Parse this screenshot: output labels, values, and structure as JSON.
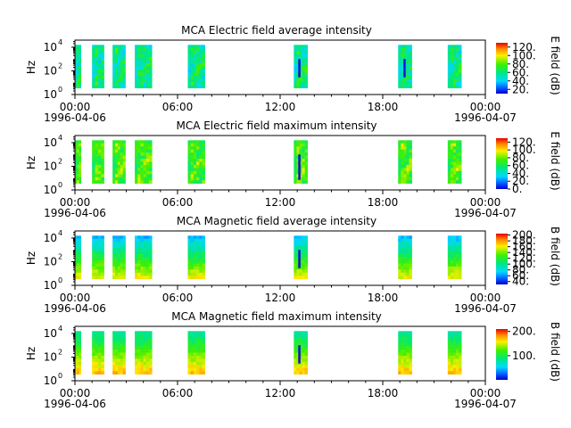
{
  "chart_data": [
    {
      "type": "heatmap",
      "title": "MCA  Electric field average intensity",
      "ylabel": "Hz",
      "colorbar_label": "E field (dB)",
      "colorbar_ticks": [
        "20.",
        "40.",
        "60.",
        "80.",
        "100.",
        "120."
      ],
      "colorbar_range": [
        10,
        130
      ],
      "y_scale": "log",
      "y_ticks": [
        {
          "base": "10",
          "exp": "0"
        },
        {
          "base": "10",
          "exp": "2"
        },
        {
          "base": "10",
          "exp": "4"
        }
      ],
      "x_ticks": [
        "00:00",
        "06:00",
        "12:00",
        "18:00",
        "00:00"
      ],
      "x_dates": [
        "1996-04-06",
        "1996-04-07"
      ],
      "bands_hours": [
        [
          0.0,
          0.35
        ],
        [
          1.0,
          1.7
        ],
        [
          2.2,
          2.95
        ],
        [
          3.5,
          4.5
        ],
        [
          6.6,
          7.6
        ],
        [
          12.8,
          13.6
        ],
        [
          18.9,
          19.7
        ],
        [
          21.8,
          22.6
        ]
      ],
      "gaps_hours": [
        [
          12.85,
          13.05
        ],
        [
          19.0,
          19.15
        ]
      ],
      "base_level": 60
    },
    {
      "type": "heatmap",
      "title": "MCA  Electric field maximum intensity",
      "ylabel": "Hz",
      "colorbar_label": "E field (dB)",
      "colorbar_ticks": [
        "0.",
        "20.",
        "40.",
        "60.",
        "80.",
        "100.",
        "120."
      ],
      "colorbar_range": [
        0,
        130
      ],
      "y_scale": "log",
      "y_ticks": [
        {
          "base": "10",
          "exp": "0"
        },
        {
          "base": "10",
          "exp": "2"
        },
        {
          "base": "10",
          "exp": "4"
        }
      ],
      "x_ticks": [
        "00:00",
        "06:00",
        "12:00",
        "18:00",
        "00:00"
      ],
      "x_dates": [
        "1996-04-06",
        "1996-04-07"
      ],
      "bands_hours": [
        [
          0.0,
          0.35
        ],
        [
          1.0,
          1.7
        ],
        [
          2.2,
          2.95
        ],
        [
          3.5,
          4.5
        ],
        [
          6.6,
          7.6
        ],
        [
          12.8,
          13.6
        ],
        [
          18.9,
          19.7
        ],
        [
          21.8,
          22.6
        ]
      ],
      "gaps_hours": [
        [
          12.85,
          13.05
        ]
      ],
      "base_level": 75
    },
    {
      "type": "heatmap",
      "title": "MCA  Magnetic field average intensity",
      "ylabel": "Hz",
      "colorbar_label": "B field (dB)",
      "colorbar_ticks": [
        "40.",
        "60.",
        "80.",
        "100.",
        "120.",
        "140.",
        "160.",
        "180.",
        "200."
      ],
      "colorbar_range": [
        30,
        205
      ],
      "y_scale": "log",
      "y_ticks": [
        {
          "base": "10",
          "exp": "0"
        },
        {
          "base": "10",
          "exp": "2"
        },
        {
          "base": "10",
          "exp": "4"
        }
      ],
      "x_ticks": [
        "00:00",
        "06:00",
        "12:00",
        "18:00",
        "00:00"
      ],
      "x_dates": [
        "1996-04-06",
        "1996-04-07"
      ],
      "bands_hours": [
        [
          0.0,
          0.35
        ],
        [
          1.0,
          1.7
        ],
        [
          2.2,
          2.95
        ],
        [
          3.5,
          4.5
        ],
        [
          6.6,
          7.6
        ],
        [
          12.8,
          13.6
        ],
        [
          18.9,
          19.7
        ],
        [
          21.8,
          22.6
        ]
      ],
      "gaps_hours": [
        [
          12.85,
          13.0
        ]
      ],
      "base_level": 110
    },
    {
      "type": "heatmap",
      "title": "MCA  Magnetic field maximum intensity",
      "ylabel": "Hz",
      "colorbar_label": "B field (dB)",
      "colorbar_ticks": [
        "100.",
        "200."
      ],
      "colorbar_range": [
        0,
        210
      ],
      "y_scale": "log",
      "y_ticks": [
        {
          "base": "10",
          "exp": "0"
        },
        {
          "base": "10",
          "exp": "2"
        },
        {
          "base": "10",
          "exp": "4"
        }
      ],
      "x_ticks": [
        "00:00",
        "06:00",
        "12:00",
        "18:00",
        "00:00"
      ],
      "x_dates": [
        "1996-04-06",
        "1996-04-07"
      ],
      "bands_hours": [
        [
          0.0,
          0.35
        ],
        [
          1.0,
          1.7
        ],
        [
          2.2,
          2.95
        ],
        [
          3.5,
          4.5
        ],
        [
          6.6,
          7.6
        ],
        [
          12.8,
          13.6
        ],
        [
          18.9,
          19.7
        ],
        [
          21.8,
          22.6
        ]
      ],
      "gaps_hours": [
        [
          12.85,
          13.0
        ]
      ],
      "base_level": 120
    }
  ]
}
